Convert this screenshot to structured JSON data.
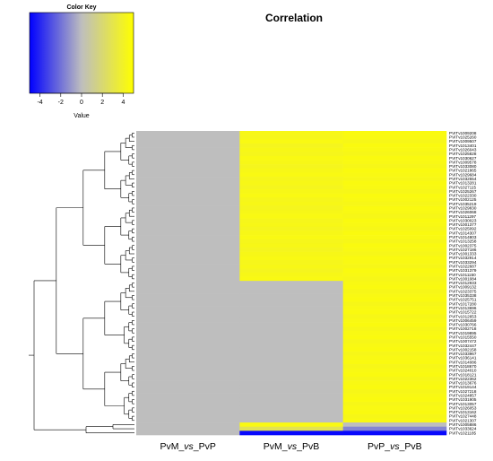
{
  "chart_data": {
    "type": "heatmap",
    "title": "Correlation",
    "color_key": {
      "title": "Color Key",
      "xlabel": "Value",
      "ticks": [
        -4,
        -2,
        0,
        2,
        4
      ],
      "range": [
        -5,
        5
      ],
      "low_color": "#0000ff",
      "mid_color": "#bebebe",
      "high_color": "#ffff00"
    },
    "columns": [
      {
        "parts": [
          "PvM_",
          "vs",
          "_PvP"
        ]
      },
      {
        "parts": [
          "PvM_",
          "vs",
          "_PvB"
        ]
      },
      {
        "parts": [
          "PvP_",
          "vs",
          "_PvB"
        ]
      }
    ],
    "rows": [
      "PVITv1009208",
      "PVITv1025260",
      "PVITv1009507",
      "PVITv1013401",
      "PVITv1026043",
      "PVITv1025828",
      "PVITv1030627",
      "PVITv1009578",
      "PVITv1033080",
      "PVITv1021865",
      "PVITv1029684",
      "PVITv1032554",
      "PVITv1013281",
      "PVITv1027115",
      "PVITv1025267",
      "PVITv1022330",
      "PVITv1002125",
      "PVITv1035219",
      "PVITv1029830",
      "PVITv1026068",
      "PVITv1011297",
      "PVITv1030023",
      "PVITv1001377",
      "PVITv1025092",
      "PVITv1014307",
      "PVITv1014803",
      "PVITv1013258",
      "PVITv1002375",
      "PVITv1027186",
      "PVITv1001333",
      "PVITv1032914",
      "PVITv1033294",
      "PVITv1022687",
      "PVITv1031379",
      "PVITv1011150",
      "PVITv1001084",
      "PVITv1012933",
      "PVITv1009132",
      "PVITv1023375",
      "PVITv1035338",
      "PVITv1025751",
      "PVITv1017280",
      "PVITv1013696",
      "PVITv1015722",
      "PVITv1012653",
      "PVITv1006459",
      "PVITv1030766",
      "PVITv1002718",
      "PVITv1019895",
      "PVITv1015550",
      "PVITv1007472",
      "PVITv1032447",
      "PVITv1002158",
      "PVITv1033967",
      "PVITv1036141",
      "PVITv1014086",
      "PVITv1018670",
      "PVITv1024010",
      "PVITv1018121",
      "PVITv1022362",
      "PVITv1013676",
      "PVITv1019144",
      "PVITv1027218",
      "PVITv1024857",
      "PVITv1031905",
      "PVITv1013057",
      "PVITv1026053",
      "PVITv1013162",
      "PVITv1027448",
      "PVITv1021307",
      "PVITv1005886",
      "PVITv1033624",
      "PVITv1021185"
    ],
    "values": [
      [
        0,
        4.4,
        4.6
      ],
      [
        0,
        4.3,
        4.5
      ],
      [
        0,
        4.5,
        4.4
      ],
      [
        0,
        4.2,
        4.6
      ],
      [
        0,
        4.4,
        4.5
      ],
      [
        0,
        4.3,
        4.4
      ],
      [
        0,
        4.5,
        4.6
      ],
      [
        0,
        4.4,
        4.5
      ],
      [
        0,
        4.2,
        4.4
      ],
      [
        0,
        4.4,
        4.6
      ],
      [
        0,
        4.5,
        4.5
      ],
      [
        0,
        4.3,
        4.4
      ],
      [
        0,
        4.4,
        4.6
      ],
      [
        0,
        4.2,
        4.5
      ],
      [
        0,
        4.4,
        4.4
      ],
      [
        0,
        4.5,
        4.6
      ],
      [
        0,
        4.3,
        4.5
      ],
      [
        0,
        4.4,
        4.4
      ],
      [
        0,
        4.2,
        4.6
      ],
      [
        0,
        4.4,
        4.5
      ],
      [
        0,
        4.5,
        4.4
      ],
      [
        0,
        4.3,
        4.6
      ],
      [
        0,
        4.4,
        4.5
      ],
      [
        0,
        4.2,
        4.4
      ],
      [
        0,
        4.4,
        4.6
      ],
      [
        0,
        4.5,
        4.5
      ],
      [
        0,
        4.3,
        4.4
      ],
      [
        0,
        4.4,
        4.6
      ],
      [
        0,
        4.2,
        4.5
      ],
      [
        0,
        4.4,
        4.4
      ],
      [
        0,
        4.5,
        4.6
      ],
      [
        0,
        4.3,
        4.5
      ],
      [
        0,
        4.4,
        4.4
      ],
      [
        0,
        4.2,
        4.6
      ],
      [
        0,
        4.4,
        4.5
      ],
      [
        0,
        4.5,
        4.4
      ],
      [
        0,
        0,
        4.5
      ],
      [
        0,
        0,
        4.6
      ],
      [
        0,
        0,
        4.4
      ],
      [
        0,
        0,
        4.5
      ],
      [
        0,
        0,
        4.6
      ],
      [
        0,
        0,
        4.4
      ],
      [
        0,
        0,
        4.5
      ],
      [
        0,
        0,
        4.6
      ],
      [
        0,
        0,
        4.4
      ],
      [
        0,
        0,
        4.5
      ],
      [
        0,
        0,
        4.6
      ],
      [
        0,
        0,
        4.4
      ],
      [
        0,
        0,
        4.5
      ],
      [
        0,
        0,
        4.6
      ],
      [
        0,
        0,
        4.4
      ],
      [
        0,
        0,
        4.5
      ],
      [
        0,
        0,
        4.6
      ],
      [
        0,
        0,
        4.4
      ],
      [
        0,
        0,
        4.5
      ],
      [
        0,
        0,
        4.6
      ],
      [
        0,
        0,
        4.4
      ],
      [
        0,
        0,
        4.5
      ],
      [
        0,
        0,
        4.6
      ],
      [
        0,
        0,
        4.4
      ],
      [
        0,
        0,
        4.5
      ],
      [
        0,
        0,
        4.6
      ],
      [
        0,
        0,
        4.4
      ],
      [
        0,
        0,
        4.5
      ],
      [
        0,
        0,
        4.6
      ],
      [
        0,
        0,
        4.4
      ],
      [
        0,
        0,
        4.5
      ],
      [
        0,
        0,
        4.6
      ],
      [
        0,
        0,
        4.4
      ],
      [
        0,
        0,
        4.5
      ],
      [
        0,
        4.5,
        0
      ],
      [
        0,
        2.8,
        -1.5
      ],
      [
        0,
        -4.8,
        -4.8
      ]
    ],
    "row_dendrogram": true
  }
}
